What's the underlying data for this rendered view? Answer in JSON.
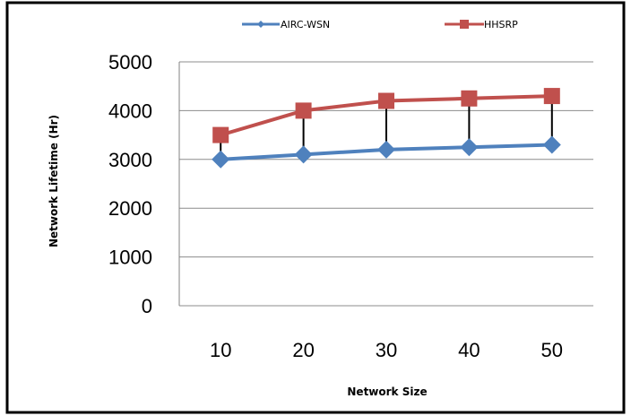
{
  "chart_data": {
    "type": "line",
    "categories": [
      "10",
      "20",
      "30",
      "40",
      "50"
    ],
    "series": [
      {
        "name": "AIRC-WSN",
        "values": [
          3000,
          3100,
          3200,
          3250,
          3300
        ],
        "color": "#4f81bd",
        "marker": "diamond"
      },
      {
        "name": "HHSRP",
        "values": [
          3500,
          4000,
          4200,
          4250,
          4300
        ],
        "color": "#c0504d",
        "marker": "square"
      }
    ],
    "drop_lines": true,
    "xlabel": "Network Size",
    "ylabel": "Network Lifetime (Hr)",
    "ylim": [
      0,
      5000
    ],
    "yticks": [
      "0",
      "1000",
      "2000",
      "3000",
      "4000",
      "5000"
    ],
    "grid": true,
    "legend_position": "top"
  }
}
